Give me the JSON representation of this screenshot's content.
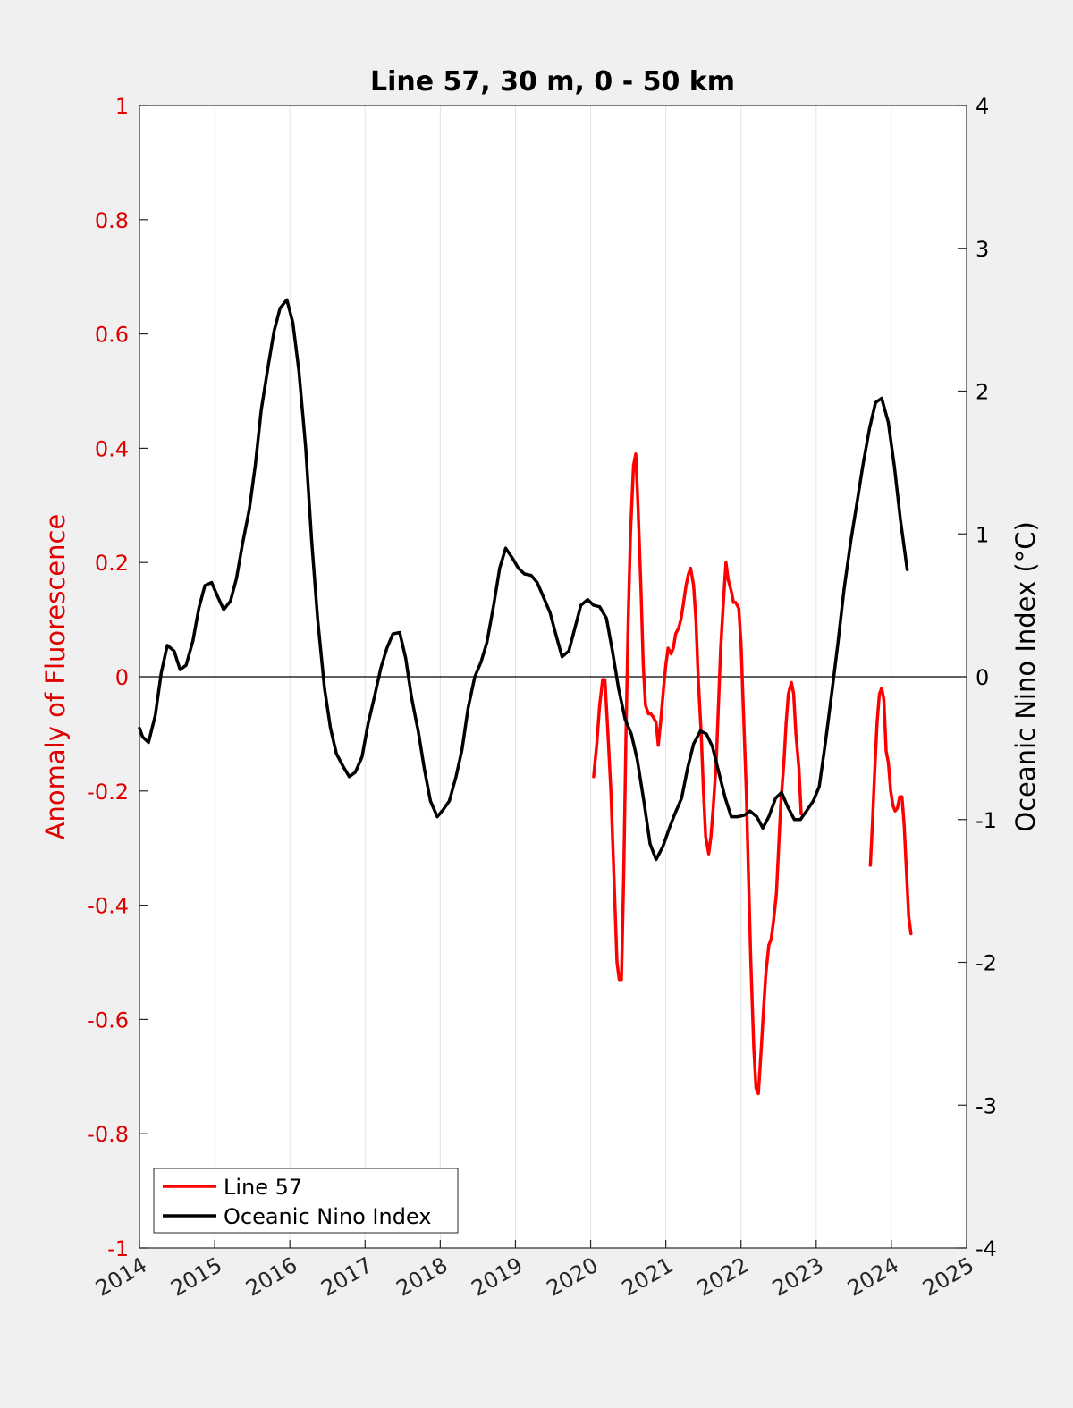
{
  "chart_data": {
    "type": "line",
    "title": "Line 57, 30 m, 0 - 50 km",
    "ylabel_left": "Anomaly of Fluorescence",
    "ylabel_right": "Oceanic Nino Index (°C)",
    "xlim": [
      2014,
      2025
    ],
    "ylim_left": [
      -1,
      1
    ],
    "ylim_right": [
      -4,
      4
    ],
    "x_ticks": [
      "2014",
      "2015",
      "2016",
      "2017",
      "2018",
      "2019",
      "2020",
      "2021",
      "2022",
      "2023",
      "2024",
      "2025"
    ],
    "y_left_ticks": [
      "-1",
      "-0.8",
      "-0.6",
      "-0.4",
      "-0.2",
      "0",
      "0.2",
      "0.4",
      "0.6",
      "0.8",
      "1"
    ],
    "y_right_ticks": [
      "-4",
      "-3",
      "-2",
      "-1",
      "0",
      "1",
      "2",
      "3",
      "4"
    ],
    "grid": "vertical",
    "zero_line": true,
    "legend_position": "bottom-left",
    "colors": {
      "line57": "#ff0000",
      "oni": "#000000",
      "left_axis": "#e00000",
      "right_axis": "#000000"
    },
    "series": [
      {
        "name": "Line 57",
        "axis": "left",
        "color": "#ff0000",
        "segments": [
          [
            [
              2020.04,
              -0.175
            ],
            [
              2020.08,
              -0.12
            ],
            [
              2020.12,
              -0.05
            ],
            [
              2020.16,
              -0.005
            ],
            [
              2020.19,
              -0.005
            ],
            [
              2020.23,
              -0.1
            ],
            [
              2020.27,
              -0.2
            ],
            [
              2020.31,
              -0.35
            ],
            [
              2020.35,
              -0.5
            ],
            [
              2020.38,
              -0.53
            ],
            [
              2020.41,
              -0.53
            ],
            [
              2020.44,
              -0.35
            ],
            [
              2020.47,
              -0.1
            ],
            [
              2020.5,
              0.1
            ],
            [
              2020.53,
              0.25
            ],
            [
              2020.57,
              0.37
            ],
            [
              2020.6,
              0.39
            ],
            [
              2020.63,
              0.3
            ],
            [
              2020.67,
              0.15
            ],
            [
              2020.7,
              0.02
            ],
            [
              2020.73,
              -0.05
            ],
            [
              2020.77,
              -0.065
            ],
            [
              2020.8,
              -0.065
            ],
            [
              2020.83,
              -0.07
            ],
            [
              2020.87,
              -0.08
            ],
            [
              2020.9,
              -0.12
            ],
            [
              2020.93,
              -0.08
            ],
            [
              2020.97,
              -0.02
            ],
            [
              2021.0,
              0.02
            ],
            [
              2021.03,
              0.05
            ],
            [
              2021.07,
              0.04
            ],
            [
              2021.1,
              0.05
            ],
            [
              2021.13,
              0.075
            ],
            [
              2021.17,
              0.085
            ],
            [
              2021.2,
              0.1
            ],
            [
              2021.23,
              0.125
            ],
            [
              2021.27,
              0.16
            ],
            [
              2021.3,
              0.18
            ],
            [
              2021.33,
              0.19
            ],
            [
              2021.37,
              0.16
            ],
            [
              2021.4,
              0.1
            ],
            [
              2021.43,
              0.0
            ],
            [
              2021.47,
              -0.1
            ],
            [
              2021.5,
              -0.2
            ],
            [
              2021.53,
              -0.28
            ],
            [
              2021.57,
              -0.31
            ],
            [
              2021.6,
              -0.28
            ],
            [
              2021.63,
              -0.23
            ],
            [
              2021.67,
              -0.15
            ],
            [
              2021.7,
              -0.05
            ],
            [
              2021.73,
              0.05
            ],
            [
              2021.77,
              0.14
            ],
            [
              2021.8,
              0.2
            ],
            [
              2021.83,
              0.17
            ],
            [
              2021.87,
              0.15
            ],
            [
              2021.9,
              0.13
            ],
            [
              2021.93,
              0.13
            ],
            [
              2021.97,
              0.12
            ],
            [
              2022.0,
              0.06
            ],
            [
              2022.03,
              -0.05
            ],
            [
              2022.07,
              -0.2
            ],
            [
              2022.1,
              -0.35
            ],
            [
              2022.13,
              -0.5
            ],
            [
              2022.17,
              -0.65
            ],
            [
              2022.2,
              -0.72
            ],
            [
              2022.23,
              -0.73
            ],
            [
              2022.27,
              -0.65
            ],
            [
              2022.3,
              -0.58
            ],
            [
              2022.33,
              -0.52
            ],
            [
              2022.37,
              -0.47
            ],
            [
              2022.4,
              -0.46
            ],
            [
              2022.43,
              -0.43
            ],
            [
              2022.47,
              -0.38
            ],
            [
              2022.5,
              -0.3
            ],
            [
              2022.53,
              -0.22
            ],
            [
              2022.57,
              -0.15
            ],
            [
              2022.6,
              -0.08
            ],
            [
              2022.63,
              -0.03
            ],
            [
              2022.67,
              -0.01
            ],
            [
              2022.7,
              -0.03
            ],
            [
              2022.73,
              -0.1
            ],
            [
              2022.77,
              -0.16
            ],
            [
              2022.8,
              -0.24
            ]
          ],
          [
            [
              2023.72,
              -0.33
            ],
            [
              2023.75,
              -0.25
            ],
            [
              2023.78,
              -0.16
            ],
            [
              2023.81,
              -0.08
            ],
            [
              2023.84,
              -0.03
            ],
            [
              2023.87,
              -0.02
            ],
            [
              2023.9,
              -0.04
            ],
            [
              2023.93,
              -0.13
            ],
            [
              2023.96,
              -0.15
            ],
            [
              2023.99,
              -0.2
            ],
            [
              2024.02,
              -0.225
            ],
            [
              2024.05,
              -0.235
            ],
            [
              2024.08,
              -0.23
            ],
            [
              2024.11,
              -0.21
            ],
            [
              2024.14,
              -0.21
            ],
            [
              2024.17,
              -0.26
            ],
            [
              2024.2,
              -0.34
            ],
            [
              2024.23,
              -0.42
            ],
            [
              2024.26,
              -0.45
            ]
          ]
        ]
      },
      {
        "name": "Oceanic Nino Index",
        "axis": "right",
        "color": "#000000",
        "segments": [
          [
            [
              2014.0,
              -0.36
            ],
            [
              2014.04,
              -0.42
            ],
            [
              2014.12,
              -0.46
            ],
            [
              2014.21,
              -0.27
            ],
            [
              2014.29,
              0.03
            ],
            [
              2014.37,
              0.22
            ],
            [
              2014.46,
              0.18
            ],
            [
              2014.54,
              0.05
            ],
            [
              2014.62,
              0.08
            ],
            [
              2014.71,
              0.25
            ],
            [
              2014.79,
              0.48
            ],
            [
              2014.87,
              0.64
            ],
            [
              2014.96,
              0.66
            ],
            [
              2015.04,
              0.56
            ],
            [
              2015.12,
              0.47
            ],
            [
              2015.21,
              0.53
            ],
            [
              2015.29,
              0.69
            ],
            [
              2015.37,
              0.93
            ],
            [
              2015.46,
              1.17
            ],
            [
              2015.54,
              1.48
            ],
            [
              2015.62,
              1.87
            ],
            [
              2015.71,
              2.17
            ],
            [
              2015.79,
              2.42
            ],
            [
              2015.87,
              2.58
            ],
            [
              2015.96,
              2.64
            ],
            [
              2016.04,
              2.48
            ],
            [
              2016.12,
              2.14
            ],
            [
              2016.21,
              1.61
            ],
            [
              2016.29,
              0.95
            ],
            [
              2016.37,
              0.4
            ],
            [
              2016.46,
              -0.08
            ],
            [
              2016.54,
              -0.36
            ],
            [
              2016.62,
              -0.54
            ],
            [
              2016.71,
              -0.63
            ],
            [
              2016.79,
              -0.7
            ],
            [
              2016.87,
              -0.67
            ],
            [
              2016.96,
              -0.56
            ],
            [
              2017.04,
              -0.33
            ],
            [
              2017.12,
              -0.15
            ],
            [
              2017.21,
              0.06
            ],
            [
              2017.29,
              0.2
            ],
            [
              2017.37,
              0.3
            ],
            [
              2017.46,
              0.31
            ],
            [
              2017.54,
              0.13
            ],
            [
              2017.62,
              -0.15
            ],
            [
              2017.71,
              -0.39
            ],
            [
              2017.79,
              -0.65
            ],
            [
              2017.87,
              -0.87
            ],
            [
              2017.96,
              -0.98
            ],
            [
              2018.04,
              -0.93
            ],
            [
              2018.12,
              -0.87
            ],
            [
              2018.21,
              -0.7
            ],
            [
              2018.29,
              -0.51
            ],
            [
              2018.37,
              -0.22
            ],
            [
              2018.46,
              0.0
            ],
            [
              2018.54,
              0.1
            ],
            [
              2018.62,
              0.24
            ],
            [
              2018.71,
              0.5
            ],
            [
              2018.79,
              0.76
            ],
            [
              2018.87,
              0.9
            ],
            [
              2018.96,
              0.83
            ],
            [
              2019.04,
              0.76
            ],
            [
              2019.12,
              0.72
            ],
            [
              2019.21,
              0.71
            ],
            [
              2019.29,
              0.66
            ],
            [
              2019.37,
              0.56
            ],
            [
              2019.46,
              0.45
            ],
            [
              2019.54,
              0.29
            ],
            [
              2019.62,
              0.14
            ],
            [
              2019.71,
              0.18
            ],
            [
              2019.79,
              0.34
            ],
            [
              2019.87,
              0.5
            ],
            [
              2019.96,
              0.54
            ],
            [
              2020.04,
              0.5
            ],
            [
              2020.12,
              0.49
            ],
            [
              2020.21,
              0.41
            ],
            [
              2020.29,
              0.18
            ],
            [
              2020.37,
              -0.08
            ],
            [
              2020.46,
              -0.3
            ],
            [
              2020.54,
              -0.4
            ],
            [
              2020.62,
              -0.58
            ],
            [
              2020.71,
              -0.88
            ],
            [
              2020.79,
              -1.17
            ],
            [
              2020.87,
              -1.28
            ],
            [
              2020.96,
              -1.19
            ],
            [
              2021.04,
              -1.07
            ],
            [
              2021.12,
              -0.96
            ],
            [
              2021.21,
              -0.85
            ],
            [
              2021.29,
              -0.64
            ],
            [
              2021.37,
              -0.47
            ],
            [
              2021.46,
              -0.38
            ],
            [
              2021.54,
              -0.4
            ],
            [
              2021.62,
              -0.49
            ],
            [
              2021.71,
              -0.68
            ],
            [
              2021.79,
              -0.85
            ],
            [
              2021.87,
              -0.98
            ],
            [
              2021.96,
              -0.98
            ],
            [
              2022.04,
              -0.97
            ],
            [
              2022.12,
              -0.94
            ],
            [
              2022.21,
              -0.98
            ],
            [
              2022.29,
              -1.06
            ],
            [
              2022.37,
              -0.98
            ],
            [
              2022.46,
              -0.85
            ],
            [
              2022.54,
              -0.81
            ],
            [
              2022.62,
              -0.91
            ],
            [
              2022.71,
              -1.0
            ],
            [
              2022.79,
              -1.0
            ],
            [
              2022.87,
              -0.94
            ],
            [
              2022.96,
              -0.87
            ],
            [
              2023.04,
              -0.77
            ],
            [
              2023.12,
              -0.47
            ],
            [
              2023.21,
              -0.1
            ],
            [
              2023.29,
              0.24
            ],
            [
              2023.37,
              0.61
            ],
            [
              2023.46,
              0.95
            ],
            [
              2023.54,
              1.21
            ],
            [
              2023.62,
              1.48
            ],
            [
              2023.71,
              1.74
            ],
            [
              2023.79,
              1.92
            ],
            [
              2023.87,
              1.95
            ],
            [
              2023.96,
              1.78
            ],
            [
              2024.04,
              1.47
            ],
            [
              2024.12,
              1.1
            ],
            [
              2024.21,
              0.75
            ]
          ]
        ]
      }
    ]
  }
}
